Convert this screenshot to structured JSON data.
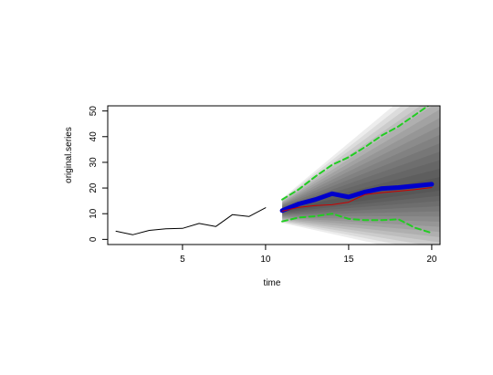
{
  "chart_data": {
    "type": "line",
    "title": "",
    "xlabel": "time",
    "ylabel": "original.series",
    "xlim": [
      0.5,
      20.5
    ],
    "ylim": [
      -2,
      52
    ],
    "grid": false,
    "legend": "none",
    "x_ticks": [
      5,
      10,
      15,
      20
    ],
    "y_ticks": [
      0,
      10,
      20,
      30,
      40,
      50
    ],
    "series": [
      {
        "role": "observed",
        "color": "#000000",
        "x": [
          1,
          2,
          3,
          4,
          5,
          6,
          7,
          8,
          9,
          10
        ],
        "values": [
          3.2,
          1.8,
          3.5,
          4.1,
          4.3,
          6.2,
          5.0,
          9.6,
          8.9,
          12.3
        ]
      },
      {
        "role": "forecast-mean",
        "color": "#0000cc",
        "x": [
          11,
          12,
          13,
          14,
          15,
          16,
          17,
          18,
          19,
          20
        ],
        "values": [
          11.2,
          13.8,
          15.5,
          17.8,
          16.5,
          18.5,
          19.8,
          20.2,
          20.8,
          21.5
        ]
      },
      {
        "role": "forecast-median",
        "color": "#cc0000",
        "x": [
          11,
          12,
          13,
          14,
          15,
          16,
          17,
          18,
          19,
          20
        ],
        "values": [
          11.0,
          12.5,
          13.2,
          13.5,
          14.5,
          17.5,
          18.2,
          18.8,
          19.4,
          20.2
        ]
      },
      {
        "role": "upper-bound",
        "color": "#22cc22",
        "x": [
          11,
          12,
          13,
          14,
          15,
          16,
          17,
          18,
          19,
          20
        ],
        "values": [
          15.5,
          19.5,
          24.5,
          29.0,
          32.0,
          36.0,
          40.5,
          44.0,
          48.5,
          53.0
        ]
      },
      {
        "role": "lower-bound",
        "color": "#22cc22",
        "x": [
          11,
          12,
          13,
          14,
          15,
          16,
          17,
          18,
          19,
          20
        ],
        "values": [
          7.0,
          8.5,
          9.0,
          10.0,
          8.0,
          7.5,
          7.5,
          7.8,
          4.5,
          2.5
        ]
      }
    ],
    "density_band": {
      "color": "#000000",
      "x": [
        11,
        20
      ],
      "center": [
        11.2,
        21.5
      ],
      "spread": [
        3,
        30
      ]
    }
  }
}
